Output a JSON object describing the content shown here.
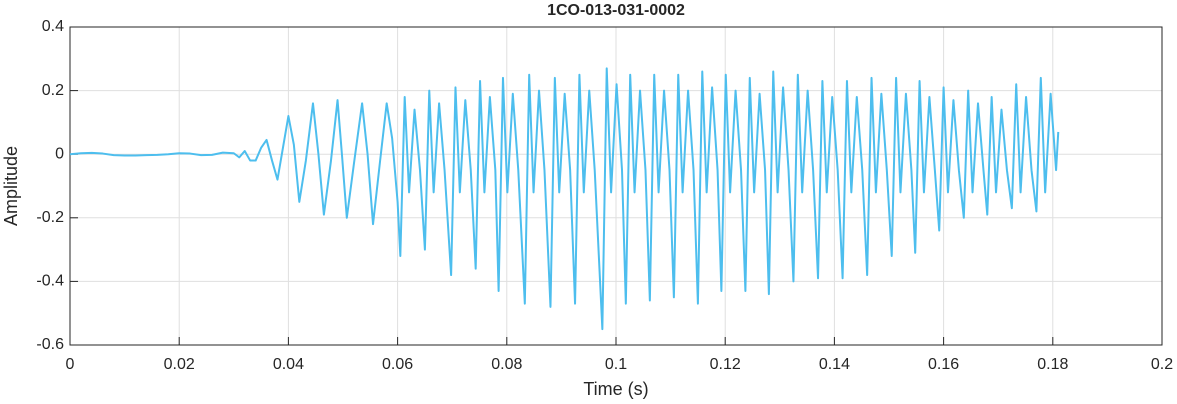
{
  "chart_data": {
    "type": "line",
    "title": "1CO-013-031-0002",
    "x_label": "Time (s)",
    "y_label": "Amplitude",
    "xlim": [
      0,
      0.2
    ],
    "xticks": [
      0,
      0.02,
      0.04,
      0.06,
      0.08,
      0.1,
      0.12,
      0.14,
      0.16,
      0.18,
      0.2
    ],
    "ylim": [
      -0.6,
      0.4
    ],
    "yticks": [
      -0.6,
      -0.4,
      -0.2,
      0,
      0.2,
      0.4
    ],
    "grid": true,
    "series": [
      {
        "color": "#4dbeee",
        "x": [
          0,
          0.002,
          0.004,
          0.006,
          0.008,
          0.01,
          0.012,
          0.014,
          0.016,
          0.018,
          0.02,
          0.022,
          0.024,
          0.026,
          0.028,
          0.03,
          0.031,
          0.032,
          0.033,
          0.034,
          0.035,
          0.036,
          0.037,
          0.038,
          0.039,
          0.04,
          0.041,
          0.042,
          0.0432,
          0.0445,
          0.0455,
          0.0465,
          0.0478,
          0.049,
          0.0498,
          0.0507,
          0.052,
          0.0535,
          0.0545,
          0.0555,
          0.0568,
          0.058,
          0.059,
          0.06,
          0.0605,
          0.0613,
          0.0621,
          0.0631,
          0.0641,
          0.065,
          0.0658,
          0.0666,
          0.0676,
          0.0686,
          0.0698,
          0.0706,
          0.0714,
          0.0724,
          0.0734,
          0.0743,
          0.0751,
          0.0759,
          0.0769,
          0.0779,
          0.0785,
          0.0793,
          0.0801,
          0.0811,
          0.0821,
          0.0833,
          0.0841,
          0.0849,
          0.0859,
          0.0869,
          0.088,
          0.0888,
          0.0896,
          0.0906,
          0.0916,
          0.0925,
          0.0933,
          0.0941,
          0.0951,
          0.0961,
          0.0975,
          0.0983,
          0.0991,
          0.1001,
          0.1011,
          0.1018,
          0.1026,
          0.1034,
          0.1044,
          0.1054,
          0.1062,
          0.107,
          0.1078,
          0.1088,
          0.1098,
          0.1106,
          0.1114,
          0.1122,
          0.1132,
          0.1142,
          0.115,
          0.1158,
          0.1166,
          0.1176,
          0.1186,
          0.1193,
          0.1201,
          0.1209,
          0.1219,
          0.1229,
          0.1237,
          0.1245,
          0.1253,
          0.1263,
          0.1273,
          0.128,
          0.1288,
          0.1296,
          0.1306,
          0.1316,
          0.1325,
          0.1333,
          0.1341,
          0.1351,
          0.1361,
          0.137,
          0.1378,
          0.1386,
          0.1396,
          0.1406,
          0.1415,
          0.1423,
          0.1431,
          0.1441,
          0.1451,
          0.146,
          0.1468,
          0.1476,
          0.1486,
          0.1496,
          0.1505,
          0.1513,
          0.1521,
          0.1531,
          0.1541,
          0.1548,
          0.1556,
          0.1564,
          0.1574,
          0.1584,
          0.1592,
          0.16,
          0.1608,
          0.1618,
          0.1628,
          0.1637,
          0.1645,
          0.1653,
          0.1663,
          0.1673,
          0.168,
          0.1688,
          0.1696,
          0.1706,
          0.1716,
          0.1725,
          0.1733,
          0.1741,
          0.1751,
          0.1761,
          0.177,
          0.1778,
          0.1786,
          0.1796,
          0.1806,
          0.181
        ],
        "values": [
          0,
          0.003,
          0.004,
          0.002,
          -0.003,
          -0.004,
          -0.004,
          -0.003,
          -0.002,
          0,
          0.003,
          0.002,
          -0.003,
          -0.002,
          0.005,
          0.003,
          -0.01,
          0.01,
          -0.02,
          -0.02,
          0.02,
          0.045,
          -0.02,
          -0.08,
          0.02,
          0.12,
          0.03,
          -0.15,
          -0.02,
          0.16,
          0,
          -0.19,
          -0.02,
          0.17,
          0,
          -0.2,
          -0.03,
          0.16,
          0,
          -0.22,
          -0.02,
          0.16,
          0.05,
          -0.15,
          -0.32,
          0.18,
          -0.12,
          0.14,
          -0.05,
          -0.3,
          0.2,
          -0.12,
          0.16,
          -0.05,
          -0.38,
          0.21,
          -0.12,
          0.17,
          -0.05,
          -0.36,
          0.23,
          -0.12,
          0.18,
          -0.05,
          -0.43,
          0.24,
          -0.12,
          0.19,
          -0.05,
          -0.47,
          0.25,
          -0.12,
          0.2,
          -0.05,
          -0.48,
          0.24,
          -0.12,
          0.19,
          -0.05,
          -0.47,
          0.25,
          -0.12,
          0.2,
          -0.05,
          -0.55,
          0.27,
          -0.12,
          0.22,
          -0.05,
          -0.47,
          0.25,
          -0.12,
          0.2,
          -0.05,
          -0.46,
          0.25,
          -0.12,
          0.2,
          -0.05,
          -0.45,
          0.25,
          -0.12,
          0.2,
          -0.05,
          -0.47,
          0.26,
          -0.12,
          0.21,
          -0.05,
          -0.43,
          0.25,
          -0.12,
          0.2,
          -0.05,
          -0.43,
          0.24,
          -0.12,
          0.19,
          -0.05,
          -0.44,
          0.26,
          -0.12,
          0.21,
          -0.05,
          -0.4,
          0.25,
          -0.12,
          0.2,
          -0.05,
          -0.39,
          0.23,
          -0.12,
          0.18,
          -0.05,
          -0.39,
          0.23,
          -0.12,
          0.18,
          -0.05,
          -0.38,
          0.24,
          -0.12,
          0.19,
          -0.05,
          -0.32,
          0.24,
          -0.12,
          0.19,
          -0.05,
          -0.31,
          0.23,
          -0.12,
          0.18,
          -0.05,
          -0.24,
          0.21,
          -0.12,
          0.17,
          -0.05,
          -0.2,
          0.2,
          -0.12,
          0.16,
          -0.05,
          -0.19,
          0.18,
          -0.12,
          0.14,
          -0.05,
          -0.17,
          0.22,
          -0.12,
          0.18,
          -0.05,
          -0.18,
          0.24,
          -0.12,
          0.19,
          -0.05,
          0.07
        ]
      }
    ]
  }
}
